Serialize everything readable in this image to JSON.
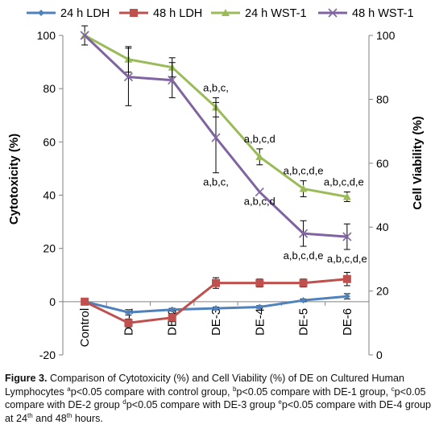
{
  "chart_data": {
    "type": "line",
    "categories": [
      "Control",
      "DE-1",
      "DE-2",
      "DE-3",
      "DE-4",
      "DE-5",
      "DE-6"
    ],
    "y_left": {
      "label": "Cytotoxicity (%)",
      "range": [
        -20,
        100
      ],
      "ticks": [
        "-20",
        "0",
        "20",
        "40",
        "60",
        "80",
        "100"
      ]
    },
    "y_right": {
      "label": "Cell Viability (%)",
      "range": [
        0,
        100
      ],
      "ticks": [
        "0",
        "20",
        "40",
        "60",
        "80",
        "100"
      ]
    },
    "legend_position": "top",
    "grid": false,
    "series": [
      {
        "name": "24 h LDH",
        "axis": "left",
        "color": "#4f81bd",
        "marker": "diamond",
        "values": [
          0,
          -4,
          -3,
          -2.5,
          -2,
          0.5,
          2
        ],
        "errors": [
          0,
          1,
          0.5,
          0.5,
          0.5,
          0.5,
          1
        ]
      },
      {
        "name": "48 h LDH",
        "axis": "left",
        "color": "#c0504d",
        "marker": "square",
        "values": [
          0,
          -8,
          -6,
          7,
          7,
          7,
          8.5
        ],
        "errors": [
          0,
          1.5,
          1.5,
          2,
          1.5,
          1.5,
          2.5
        ]
      },
      {
        "name": "24 h WST-1",
        "axis": "right",
        "color": "#9bbb59",
        "marker": "triangle",
        "values": [
          100,
          92.5,
          90,
          77.5,
          62,
          52,
          49.5
        ],
        "errors": [
          3,
          4,
          3,
          3,
          2.5,
          2.5,
          1.5
        ]
      },
      {
        "name": "48 h WST-1",
        "axis": "right",
        "color": "#8064a2",
        "marker": "x",
        "values": [
          100,
          87,
          86,
          68,
          51,
          38,
          37
        ],
        "errors": [
          0,
          9,
          5.5,
          11,
          0,
          4,
          4
        ]
      }
    ],
    "annotations": [
      {
        "text": "a,b,c,",
        "category": "DE-3",
        "position": "above"
      },
      {
        "text": "a,b,c,",
        "category": "DE-3",
        "position": "below"
      },
      {
        "text": "a,b,c,d",
        "category": "DE-4",
        "position": "above"
      },
      {
        "text": "a,b,c,d",
        "category": "DE-4",
        "position": "below"
      },
      {
        "text": "a,b,c,d,e",
        "category": "DE-5",
        "position": "above"
      },
      {
        "text": "a,b,c,d,e",
        "category": "DE-5",
        "position": "below"
      },
      {
        "text": "a,b,c,d,e",
        "category": "DE-6",
        "position": "above"
      },
      {
        "text": "a,b,c,d,e",
        "category": "DE-6",
        "position": "below"
      }
    ]
  },
  "caption": {
    "figure_label": "Figure 3.",
    "segments": [
      {
        "text": " Comparison of Cytotoxicity (%) and Cell Viability (%) of DE on Cultured Human Lymphocytes "
      },
      {
        "sup": "a"
      },
      {
        "text": "p<0.05 compare with control group, "
      },
      {
        "sup": "b"
      },
      {
        "text": "p<0.05 compare with DE-1 group, "
      },
      {
        "sup": "c"
      },
      {
        "text": "p<0.05 compare with DE-2 group "
      },
      {
        "sup": "d"
      },
      {
        "text": "p<0.05 compare with DE-3 group "
      },
      {
        "sup": "e"
      },
      {
        "text": "p<0.05 compare with DE-4 group at 24"
      },
      {
        "sup": "th"
      },
      {
        "text": " and 48"
      },
      {
        "sup": "th"
      },
      {
        "text": " hours."
      }
    ]
  }
}
